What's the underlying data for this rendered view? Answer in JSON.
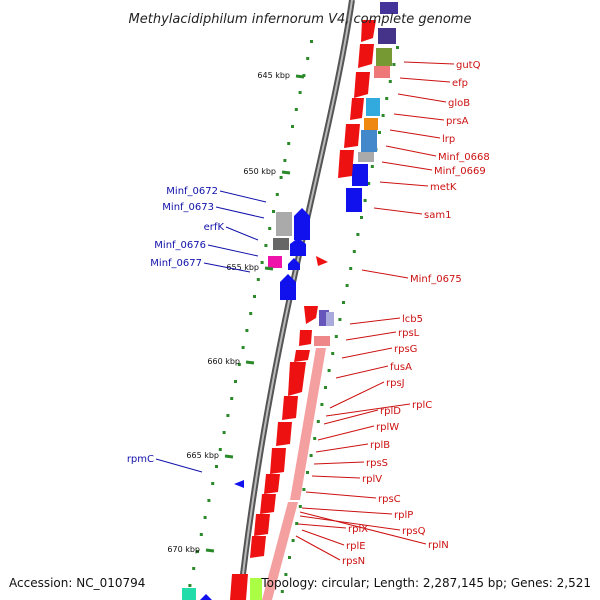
{
  "title": "Methylacidiphilum infernorum V4, complete genome",
  "footer": {
    "accession": "Accession: NC_010794",
    "info": "Topology: circular; Length: 2,287,145 bp; Genes: 2,521"
  },
  "ticks": [
    "645 kbp",
    "650 kbp",
    "655 kbp",
    "660 kbp",
    "665 kbp",
    "670 kbp"
  ],
  "forward_labels": [
    "gutQ",
    "efp",
    "gloB",
    "prsA",
    "lrp",
    "Minf_0668",
    "Minf_0669",
    "metK",
    "sam1",
    "Minf_0675",
    "lcb5",
    "rpsL",
    "rpsG",
    "fusA",
    "rpsJ",
    "rplC",
    "rplD",
    "rplW",
    "rplB",
    "rpsS",
    "rplV",
    "rpsC",
    "rplP",
    "rpsQ",
    "rplX",
    "rplN",
    "rplE",
    "rpsN"
  ],
  "reverse_labels": [
    "Minf_0672",
    "Minf_0673",
    "erfK",
    "Minf_0676",
    "Minf_0677",
    "rpmC"
  ],
  "colors": {
    "forward": "#ee1111",
    "reverse": "#1111dd",
    "backbone": "#777777",
    "gc_dots": "#2a8a2a"
  }
}
